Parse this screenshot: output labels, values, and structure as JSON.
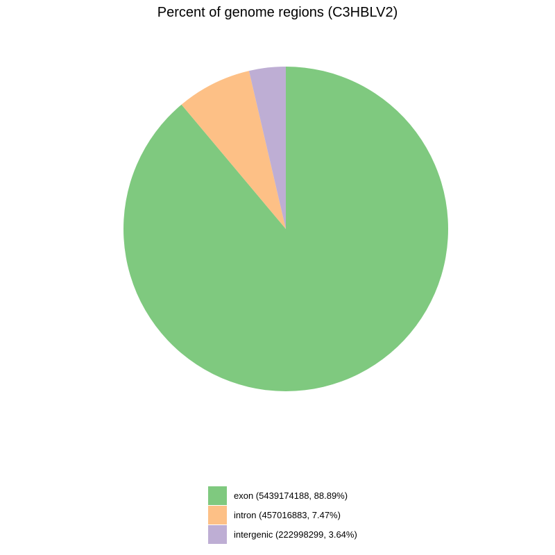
{
  "chart_data": {
    "type": "pie",
    "title": "Percent of genome regions (C3HBLV2)",
    "categories": [
      "exon",
      "intron",
      "intergenic"
    ],
    "values": [
      5439174188,
      457016883,
      222998299
    ],
    "percents": [
      88.89,
      7.47,
      3.64
    ],
    "colors": [
      "#7fc97f",
      "#fdc086",
      "#beaed4"
    ],
    "legend": {
      "position": "bottom",
      "entries": [
        "exon (5439174188, 88.89%)",
        "intron (457016883, 7.47%)",
        "intergenic (222998299, 3.64%)"
      ]
    },
    "start_angle": "12 o'clock",
    "direction": "clockwise"
  }
}
